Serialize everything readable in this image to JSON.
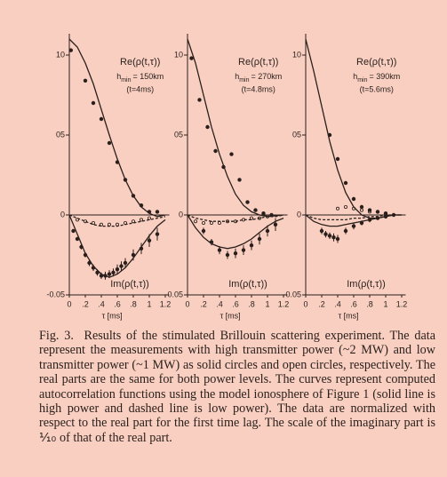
{
  "chart_data": [
    {
      "type": "line",
      "re_label": "Re(ρ(t,τ))",
      "altitude_symbol": "h",
      "altitude_subscript": "min",
      "altitude": "= 150km",
      "time": "(t=4ms)",
      "im_label": "Im(ρ(t,τ))",
      "xlabel": "τ [ms]",
      "xlim": [
        -0.05,
        1.25
      ],
      "xticks": [
        0,
        {
          "value": 0.2,
          "label": ".2"
        },
        {
          "value": 0.4,
          "label": ".4"
        },
        {
          "value": 0.6,
          "label": ".6"
        },
        {
          "value": 0.8,
          "label": ".8"
        },
        1,
        {
          "value": 1.2,
          "label": "1.2"
        }
      ],
      "ylim": [
        -0.5,
        1.1
      ],
      "yticks": [
        {
          "value": 1,
          "label": "10"
        },
        {
          "value": 0.5,
          "label": "05"
        },
        0
      ],
      "y2lim": [
        -0.05,
        0.11
      ],
      "y2ticks": [
        -0.05
      ],
      "series": [
        {
          "marker": "filled",
          "x": [
            0.02,
            0.2,
            0.3,
            0.4,
            0.5,
            0.6,
            0.7,
            0.8,
            0.9,
            1.0,
            1.1
          ],
          "values": [
            1.03,
            0.84,
            0.7,
            0.6,
            0.45,
            0.33,
            0.22,
            0.12,
            0.06,
            0.02,
            0.02
          ]
        },
        {
          "line": "solid",
          "x": [
            0,
            0.1,
            0.2,
            0.3,
            0.4,
            0.5,
            0.6,
            0.7,
            0.8,
            0.9,
            1.0,
            1.1,
            1.2
          ],
          "values": [
            1.1,
            1.05,
            0.95,
            0.82,
            0.66,
            0.5,
            0.35,
            0.22,
            0.12,
            0.05,
            0.01,
            -0.01,
            0
          ]
        },
        {
          "axis": "y2",
          "marker": "filled",
          "x": [
            0.05,
            0.1,
            0.15,
            0.2,
            0.25,
            0.3,
            0.35,
            0.4,
            0.45,
            0.5,
            0.55,
            0.6,
            0.65,
            0.7,
            0.8,
            0.9,
            1.0,
            1.1
          ],
          "values": [
            -0.01,
            -0.015,
            -0.02,
            -0.025,
            -0.03,
            -0.033,
            -0.036,
            -0.038,
            -0.038,
            -0.037,
            -0.036,
            -0.034,
            -0.032,
            -0.03,
            -0.025,
            -0.021,
            -0.016,
            -0.012
          ],
          "errors": [
            0.001,
            0.001,
            0.0015,
            0.0015,
            0.002,
            0.002,
            0.002,
            0.002,
            0.0025,
            0.0025,
            0.0025,
            0.003,
            0.003,
            0.003,
            0.0035,
            0.0035,
            0.004,
            0.004
          ]
        },
        {
          "axis": "y2",
          "marker": "open",
          "x": [
            0.1,
            0.2,
            0.3,
            0.4,
            0.5,
            0.6,
            0.7,
            0.8,
            0.9,
            1.0
          ],
          "values": [
            -0.003,
            -0.004,
            -0.005,
            -0.006,
            -0.006,
            -0.006,
            -0.005,
            -0.004,
            -0.003,
            -0.002
          ]
        },
        {
          "axis": "y2",
          "line": "solid",
          "x": [
            0,
            0.1,
            0.2,
            0.3,
            0.4,
            0.5,
            0.6,
            0.7,
            0.8,
            0.9,
            1.0,
            1.1,
            1.2
          ],
          "values": [
            0,
            -0.012,
            -0.024,
            -0.032,
            -0.037,
            -0.039,
            -0.037,
            -0.033,
            -0.027,
            -0.02,
            -0.013,
            -0.007,
            -0.003
          ]
        },
        {
          "axis": "y2",
          "line": "dashed",
          "x": [
            0,
            0.1,
            0.2,
            0.3,
            0.4,
            0.5,
            0.6,
            0.7,
            0.8,
            0.9,
            1.0,
            1.1,
            1.2
          ],
          "values": [
            0,
            -0.002,
            -0.004,
            -0.006,
            -0.007,
            -0.007,
            -0.007,
            -0.006,
            -0.005,
            -0.004,
            -0.003,
            -0.002,
            -0.001
          ]
        }
      ]
    },
    {
      "type": "line",
      "re_label": "Re(ρ(t,τ))",
      "altitude_symbol": "h",
      "altitude_subscript": "min",
      "altitude": "= 270km",
      "time": "(t=4.8ms)",
      "im_label": "Im(ρ(t,τ))",
      "xlabel": "τ [ms]",
      "xlim": [
        -0.05,
        1.25
      ],
      "xticks": [
        0,
        {
          "value": 0.2,
          "label": ".2"
        },
        {
          "value": 0.4,
          "label": ".4"
        },
        {
          "value": 0.6,
          "label": ".6"
        },
        {
          "value": 0.8,
          "label": ".8"
        },
        1,
        {
          "value": 1.2,
          "label": "1.2"
        }
      ],
      "ylim": [
        -0.5,
        1.1
      ],
      "yticks": [
        {
          "value": 1,
          "label": "10"
        },
        {
          "value": 0.5,
          "label": "05"
        },
        0
      ],
      "y2lim": [
        -0.05,
        0.11
      ],
      "y2ticks": [
        -0.05
      ],
      "series": [
        {
          "marker": "filled",
          "x": [
            0.05,
            0.15,
            0.25,
            0.35,
            0.45,
            0.55,
            0.65,
            0.75,
            0.85,
            0.95,
            1.05
          ],
          "values": [
            0.98,
            0.72,
            0.55,
            0.4,
            0.3,
            0.38,
            0.22,
            0.08,
            0.03,
            0.01,
            0
          ]
        },
        {
          "line": "solid",
          "x": [
            0,
            0.1,
            0.2,
            0.3,
            0.4,
            0.5,
            0.6,
            0.7,
            0.8,
            0.9,
            1.0,
            1.1,
            1.2
          ],
          "values": [
            1.1,
            0.95,
            0.75,
            0.55,
            0.38,
            0.24,
            0.13,
            0.06,
            0.02,
            0,
            -0.01,
            -0.005,
            0
          ]
        },
        {
          "axis": "y2",
          "marker": "filled",
          "x": [
            0.2,
            0.3,
            0.4,
            0.5,
            0.6,
            0.7,
            0.8,
            0.9,
            1.0,
            1.1
          ],
          "values": [
            -0.01,
            -0.017,
            -0.022,
            -0.025,
            -0.024,
            -0.022,
            -0.019,
            -0.015,
            -0.01,
            -0.006
          ],
          "errors": [
            0.002,
            0.002,
            0.0025,
            0.0025,
            0.003,
            0.003,
            0.003,
            0.0035,
            0.0035,
            0.004
          ]
        },
        {
          "axis": "y2",
          "marker": "open",
          "x": [
            0.1,
            0.2,
            0.3,
            0.4,
            0.5,
            0.6,
            0.7,
            0.8,
            0.9,
            1.0
          ],
          "values": [
            -0.004,
            -0.005,
            -0.005,
            -0.005,
            -0.004,
            -0.004,
            -0.003,
            -0.002,
            -0.002,
            -0.001
          ]
        },
        {
          "axis": "y2",
          "line": "solid",
          "x": [
            0,
            0.1,
            0.2,
            0.3,
            0.4,
            0.5,
            0.6,
            0.7,
            0.8,
            0.9,
            1.0,
            1.1,
            1.2
          ],
          "values": [
            0,
            -0.008,
            -0.014,
            -0.018,
            -0.02,
            -0.021,
            -0.02,
            -0.018,
            -0.015,
            -0.011,
            -0.007,
            -0.004,
            -0.002
          ]
        },
        {
          "axis": "y2",
          "line": "dashed",
          "x": [
            0,
            0.1,
            0.2,
            0.3,
            0.4,
            0.5,
            0.6,
            0.7,
            0.8,
            0.9,
            1.0,
            1.1,
            1.2
          ],
          "values": [
            0,
            -0.002,
            -0.003,
            -0.004,
            -0.004,
            -0.004,
            -0.004,
            -0.003,
            -0.003,
            -0.002,
            -0.001,
            -0.001,
            0
          ]
        }
      ]
    },
    {
      "type": "line",
      "re_label": "Re(ρ(t,τ))",
      "altitude_symbol": "h",
      "altitude_subscript": "min",
      "altitude": "= 390km",
      "time": "(t=5.6ms)",
      "im_label": "Im(ρ(t,τ))",
      "xlabel": "τ [ms]",
      "xlim": [
        -0.05,
        1.25
      ],
      "xticks": [
        0,
        {
          "value": 0.2,
          "label": ".2"
        },
        {
          "value": 0.4,
          "label": ".4"
        },
        {
          "value": 0.6,
          "label": ".6"
        },
        {
          "value": 0.8,
          "label": ".8"
        },
        1,
        {
          "value": 1.2,
          "label": "1.2"
        }
      ],
      "ylim": [
        -0.5,
        1.1
      ],
      "yticks": [
        {
          "value": 1,
          "label": "10"
        },
        {
          "value": 0.5,
          "label": "05"
        },
        0
      ],
      "y2lim": [
        -0.05,
        0.11
      ],
      "y2ticks": [
        -0.05
      ],
      "series": [
        {
          "marker": "filled",
          "x": [
            0.3,
            0.4,
            0.5,
            0.6,
            0.7,
            0.8,
            0.9,
            1.0
          ],
          "values": [
            0.5,
            0.35,
            0.2,
            0.1,
            0.05,
            0.03,
            0.02,
            0.01
          ]
        },
        {
          "line": "solid",
          "x": [
            0,
            0.1,
            0.2,
            0.3,
            0.4,
            0.5,
            0.6,
            0.7,
            0.8,
            0.9,
            1.0,
            1.1,
            1.2
          ],
          "values": [
            1.1,
            0.9,
            0.68,
            0.46,
            0.28,
            0.14,
            0.05,
            0,
            -0.02,
            -0.02,
            -0.01,
            0,
            0
          ]
        },
        {
          "axis": "y2",
          "marker": "filled",
          "x": [
            0.2,
            0.25,
            0.3,
            0.35,
            0.4,
            0.5,
            0.6,
            0.7,
            0.8,
            0.9,
            1.0,
            1.1
          ],
          "values": [
            -0.01,
            -0.012,
            -0.013,
            -0.014,
            -0.015,
            -0.01,
            -0.007,
            -0.005,
            -0.003,
            -0.002,
            -0.001,
            0
          ],
          "errors": [
            0.002,
            0.002,
            0.002,
            0.0025,
            0.0025,
            0.002,
            0.002,
            0.0015,
            0.0015,
            0.001,
            0.001,
            0.001
          ]
        },
        {
          "axis": "y2",
          "marker": "open",
          "x": [
            0.4,
            0.5,
            0.6,
            0.7,
            0.8
          ],
          "values": [
            0.004,
            0.005,
            0.004,
            0.003,
            0.002
          ]
        },
        {
          "axis": "y2",
          "line": "solid",
          "x": [
            0,
            0.1,
            0.2,
            0.3,
            0.4,
            0.5,
            0.6,
            0.7,
            0.8,
            0.9,
            1.0,
            1.1,
            1.2
          ],
          "values": [
            0,
            -0.004,
            -0.006,
            -0.007,
            -0.007,
            -0.006,
            -0.005,
            -0.004,
            -0.003,
            -0.002,
            -0.001,
            0,
            0
          ]
        },
        {
          "axis": "y2",
          "line": "dashed",
          "x": [
            0,
            0.1,
            0.2,
            0.3,
            0.4,
            0.5,
            0.6,
            0.7,
            0.8,
            0.9,
            1.0,
            1.1,
            1.2
          ],
          "values": [
            0,
            -0.002,
            -0.003,
            -0.003,
            -0.003,
            -0.003,
            -0.002,
            -0.002,
            -0.001,
            -0.001,
            0,
            0,
            0
          ]
        }
      ]
    }
  ],
  "caption": {
    "label": "Fig. 3.",
    "text": "Results of the stimulated Brillouin scattering experiment. The data represent the measurements with high transmitter power (~2 MW) and low transmitter power (~1 MW) as solid circles and open circles, respectively. The real parts are the same for both power levels. The curves represent computed autocorrelation functions using the model ionosphere of Figure 1 (solid line is high power and dashed line is low power). The data are normalized with respect to the real part for the first time lag. The scale of the imaginary part is ⅒ of that of the real part."
  }
}
